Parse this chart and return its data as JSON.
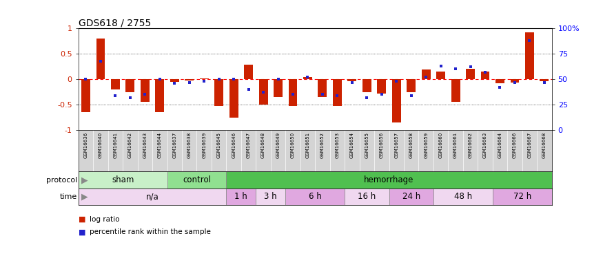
{
  "title": "GDS618 / 2755",
  "samples": [
    "GSM16636",
    "GSM16640",
    "GSM16641",
    "GSM16642",
    "GSM16643",
    "GSM16644",
    "GSM16637",
    "GSM16638",
    "GSM16639",
    "GSM16645",
    "GSM16646",
    "GSM16647",
    "GSM16648",
    "GSM16649",
    "GSM16650",
    "GSM16651",
    "GSM16652",
    "GSM16653",
    "GSM16654",
    "GSM16655",
    "GSM16656",
    "GSM16657",
    "GSM16658",
    "GSM16659",
    "GSM16660",
    "GSM16661",
    "GSM16662",
    "GSM16663",
    "GSM16664",
    "GSM16666",
    "GSM16667",
    "GSM16668"
  ],
  "log_ratio": [
    -0.65,
    0.8,
    -0.2,
    -0.25,
    -0.45,
    -0.65,
    -0.05,
    -0.03,
    0.02,
    -0.52,
    -0.76,
    0.28,
    -0.5,
    -0.35,
    -0.52,
    0.04,
    -0.35,
    -0.52,
    -0.04,
    -0.25,
    -0.28,
    -0.85,
    -0.25,
    0.19,
    0.15,
    -0.45,
    0.2,
    0.15,
    -0.08,
    -0.06,
    0.92,
    -0.04
  ],
  "percentile": [
    0.5,
    0.68,
    0.34,
    0.32,
    0.35,
    0.5,
    0.46,
    0.47,
    0.48,
    0.5,
    0.5,
    0.4,
    0.37,
    0.5,
    0.35,
    0.52,
    0.35,
    0.34,
    0.47,
    0.32,
    0.35,
    0.48,
    0.34,
    0.52,
    0.63,
    0.6,
    0.62,
    0.57,
    0.42,
    0.47,
    0.88,
    0.47
  ],
  "protocol_groups": [
    {
      "label": "sham",
      "start": 0,
      "end": 5,
      "color": "#c8f0c8"
    },
    {
      "label": "control",
      "start": 6,
      "end": 9,
      "color": "#90e090"
    },
    {
      "label": "hemorrhage",
      "start": 10,
      "end": 31,
      "color": "#50c050"
    }
  ],
  "time_groups": [
    {
      "label": "n/a",
      "start": 0,
      "end": 9,
      "color": "#f0d8f0"
    },
    {
      "label": "1 h",
      "start": 10,
      "end": 11,
      "color": "#e0a8e0"
    },
    {
      "label": "3 h",
      "start": 12,
      "end": 13,
      "color": "#f0d8f0"
    },
    {
      "label": "6 h",
      "start": 14,
      "end": 17,
      "color": "#e0a8e0"
    },
    {
      "label": "16 h",
      "start": 18,
      "end": 20,
      "color": "#f0d8f0"
    },
    {
      "label": "24 h",
      "start": 21,
      "end": 23,
      "color": "#e0a8e0"
    },
    {
      "label": "48 h",
      "start": 24,
      "end": 27,
      "color": "#f0d8f0"
    },
    {
      "label": "72 h",
      "start": 28,
      "end": 31,
      "color": "#e0a8e0"
    }
  ],
  "bar_color": "#cc2200",
  "dot_color": "#2222cc",
  "label_bg": "#d4d4d4",
  "ylim": [
    -1,
    1
  ],
  "y2lim": [
    0,
    100
  ]
}
